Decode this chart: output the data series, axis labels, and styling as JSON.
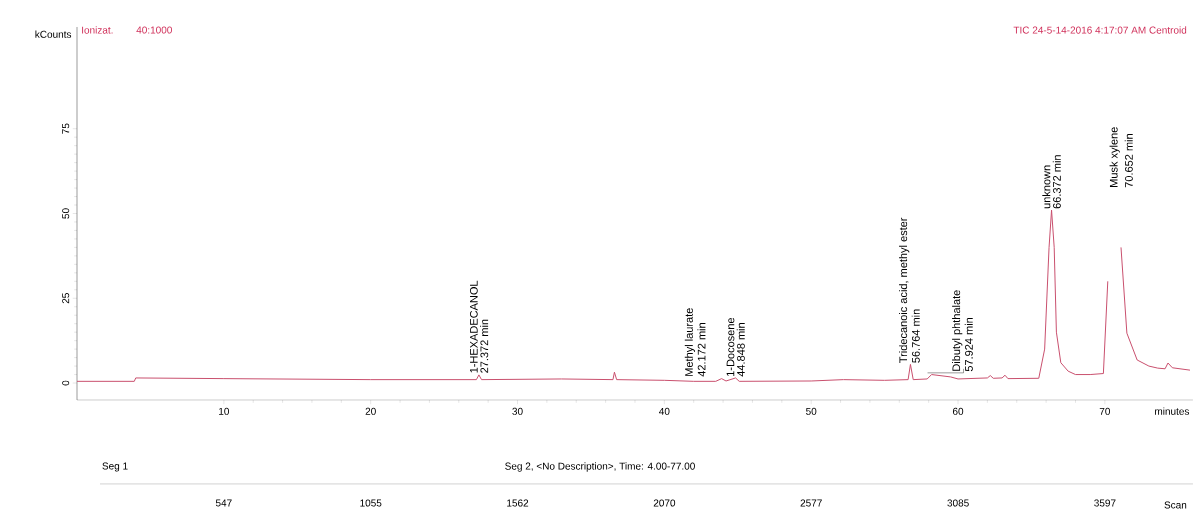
{
  "chart_data": {
    "type": "line",
    "xlabel": "minutes",
    "ylabel": "kCounts",
    "x": [
      0,
      3.9,
      4.0,
      10,
      20,
      27.2,
      27.37,
      27.55,
      33,
      36.5,
      36.6,
      36.75,
      40,
      42,
      43.5,
      43.9,
      44.2,
      44.85,
      45.1,
      50,
      52.2,
      55,
      56.6,
      56.76,
      56.95,
      57.9,
      58.2,
      59.5,
      60,
      62,
      62.2,
      62.4,
      63,
      63.2,
      63.4,
      65.5,
      65.9,
      66.2,
      66.37,
      66.55,
      66.7,
      67,
      67.5,
      68,
      69,
      69.9,
      70.2,
      70.45,
      70.85,
      71.1,
      71.5,
      72.2,
      73,
      73.6,
      74.1,
      74.3,
      74.6,
      75.8
    ],
    "series": [
      {
        "color": "#c94f6d",
        "values": [
          0.5,
          0.5,
          1.5,
          1.3,
          1.0,
          1.0,
          2.4,
          1.0,
          1.2,
          1.0,
          3.2,
          1.0,
          0.8,
          0.5,
          0.5,
          1.3,
          0.6,
          1.5,
          0.5,
          0.6,
          1.0,
          0.8,
          1.0,
          5.5,
          1.0,
          1.2,
          2.5,
          1.8,
          1.2,
          1.5,
          2.2,
          1.4,
          1.5,
          2.3,
          1.3,
          1.4,
          10,
          40,
          51,
          40,
          15,
          6,
          3.5,
          2.5,
          2.5,
          2.8,
          30,
          null,
          null,
          40,
          14.7,
          6.8,
          5,
          4.4,
          4.2,
          5.9,
          4.5,
          3.8
        ]
      }
    ],
    "xlim": [
      0,
      76
    ],
    "ylim": [
      -5,
      105
    ],
    "xticks": [
      10,
      20,
      30,
      40,
      50,
      60,
      70
    ],
    "yticks": [
      0,
      25,
      50,
      75
    ],
    "annotations": [
      "Ionizat.",
      "40:1000",
      "TIC 24-5-14-2016 4:17:07 AM Centroid",
      "Seg 1",
      "Seg 2, <No Description>, Time: 4.00-77.00",
      {
        "text": "1-HEXADECANOL",
        "x": 27.372,
        "y": 2.5
      },
      {
        "text": "27.372 min",
        "x": 27.372,
        "y": 2.5
      },
      {
        "text": "Methyl laurate",
        "x": 42.172,
        "y": 1.5
      },
      {
        "text": "42.172 min",
        "x": 42.172,
        "y": 1.5
      },
      {
        "text": "1-Docosene",
        "x": 44.848,
        "y": 1.5
      },
      {
        "text": "44.848 min",
        "x": 44.848,
        "y": 1.5
      },
      {
        "text": "Tridecanoic acid, methyl ester",
        "x": 56.764,
        "y": 5.5
      },
      {
        "text": "56.764 min",
        "x": 56.764,
        "y": 5.5
      },
      {
        "text": "Dibutyl phthalate",
        "x": 57.924,
        "y": 3
      },
      {
        "text": "57.924 min",
        "x": 57.924,
        "y": 3
      },
      {
        "text": "unknown",
        "x": 66.372,
        "y": 51
      },
      {
        "text": "66.372 min",
        "x": 66.372,
        "y": 51
      },
      "Musk xylene",
      "70.652 min",
      "547",
      "1055",
      "1562",
      "2070",
      "2577",
      "3085",
      "3597",
      "Scan"
    ],
    "grid": false,
    "marker": "none",
    "line_style": "solid"
  }
}
